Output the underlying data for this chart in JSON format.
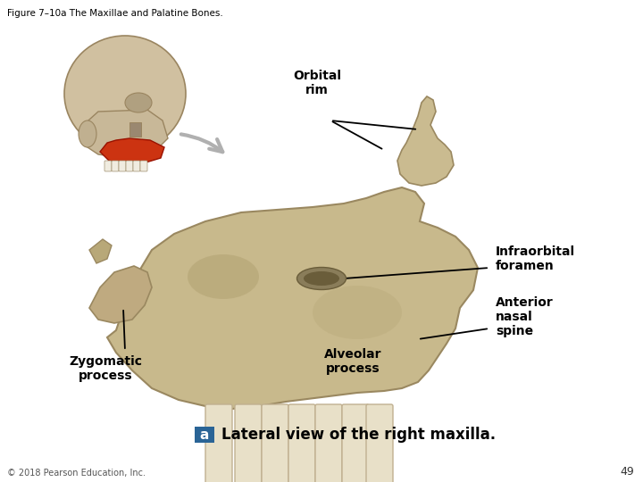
{
  "title": "Figure 7–10a The Maxillae and Palatine Bones.",
  "title_fontsize": 7.5,
  "title_color": "#000000",
  "background_color": "#ffffff",
  "caption_label": "a",
  "caption_label_color": "#ffffff",
  "caption_label_bg": "#2a6496",
  "caption_text": "Lateral view of the right maxilla.",
  "caption_fontsize": 12,
  "page_number": "49",
  "copyright": "© 2018 Pearson Education, Inc.",
  "bone_color": "#c8b98c",
  "bone_edge": "#9a8860",
  "bone_dark": "#a89870",
  "tooth_color": "#e8e0c8",
  "tooth_edge": "#c0b090",
  "skull_color": "#d0c0a0",
  "skull_edge": "#9a8560",
  "maxilla_highlight": "#cc3311",
  "arrow_color": "#b0b0b0",
  "label_fontsize": 10,
  "label_fontweight": "bold"
}
